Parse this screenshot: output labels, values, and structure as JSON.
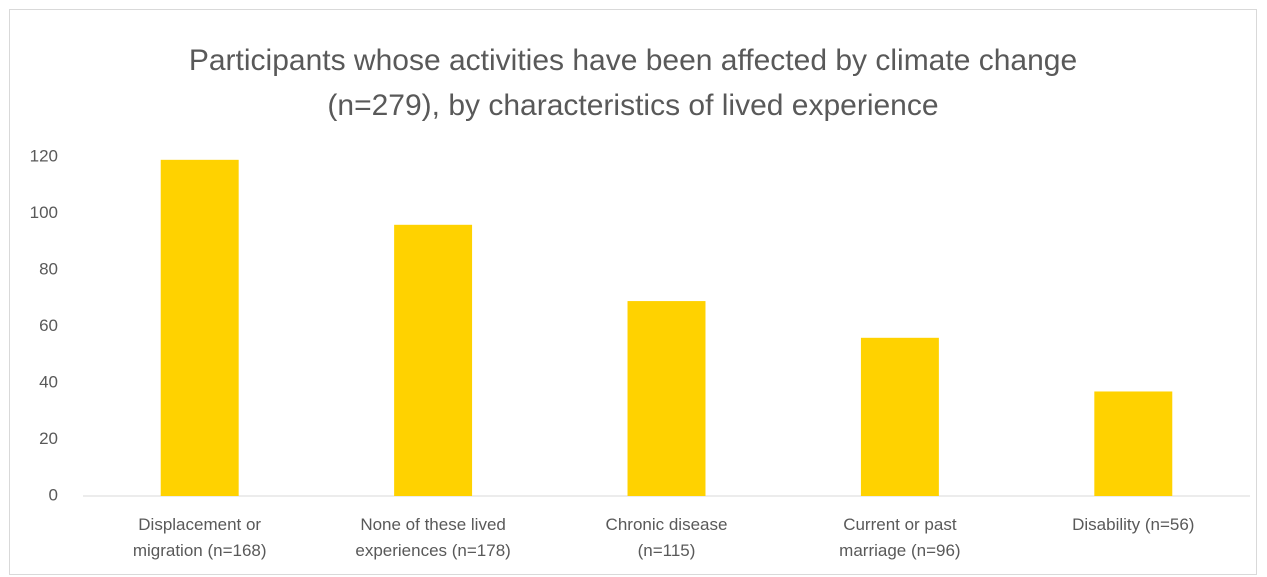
{
  "chart_data": {
    "type": "bar",
    "title": "Participants whose activities have been affected by climate change (n=279), by characteristics of lived experience",
    "categories": [
      "Displacement or migration (n=168)",
      "None of these lived experiences (n=178)",
      "Chronic disease (n=115)",
      "Current or past marriage (n=96)",
      "Disability (n=56)"
    ],
    "values": [
      119,
      96,
      69,
      56,
      37
    ],
    "color": "#ffd200",
    "ylim": [
      0,
      120
    ],
    "yticks": [
      0,
      20,
      40,
      60,
      80,
      100,
      120
    ],
    "grid": false
  }
}
